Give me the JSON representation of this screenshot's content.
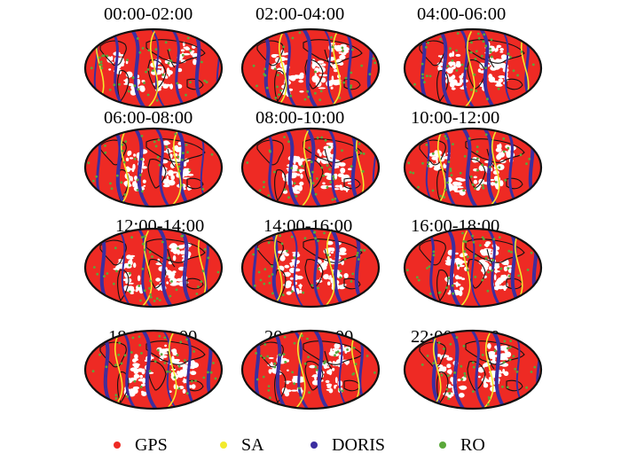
{
  "figure": {
    "panels": [
      {
        "title": "00:00-02:00"
      },
      {
        "title": "02:00-04:00"
      },
      {
        "title": "04:00-06:00"
      },
      {
        "title": "06:00-08:00"
      },
      {
        "title": "08:00-10:00"
      },
      {
        "title": "10:00-12:00"
      },
      {
        "title": "12:00-14:00"
      },
      {
        "title": "14:00-16:00"
      },
      {
        "title": "16:00-18:00"
      },
      {
        "title": "18:00-20:00"
      },
      {
        "title": "20:00-22:00"
      },
      {
        "title": "22:00-24:00"
      }
    ],
    "legend": [
      {
        "label": "GPS",
        "color": "#ee2a24"
      },
      {
        "label": "SA",
        "color": "#f2ea2c"
      },
      {
        "label": "DORIS",
        "color": "#3b2ea0"
      },
      {
        "label": "RO",
        "color": "#5aa83a"
      }
    ]
  }
}
